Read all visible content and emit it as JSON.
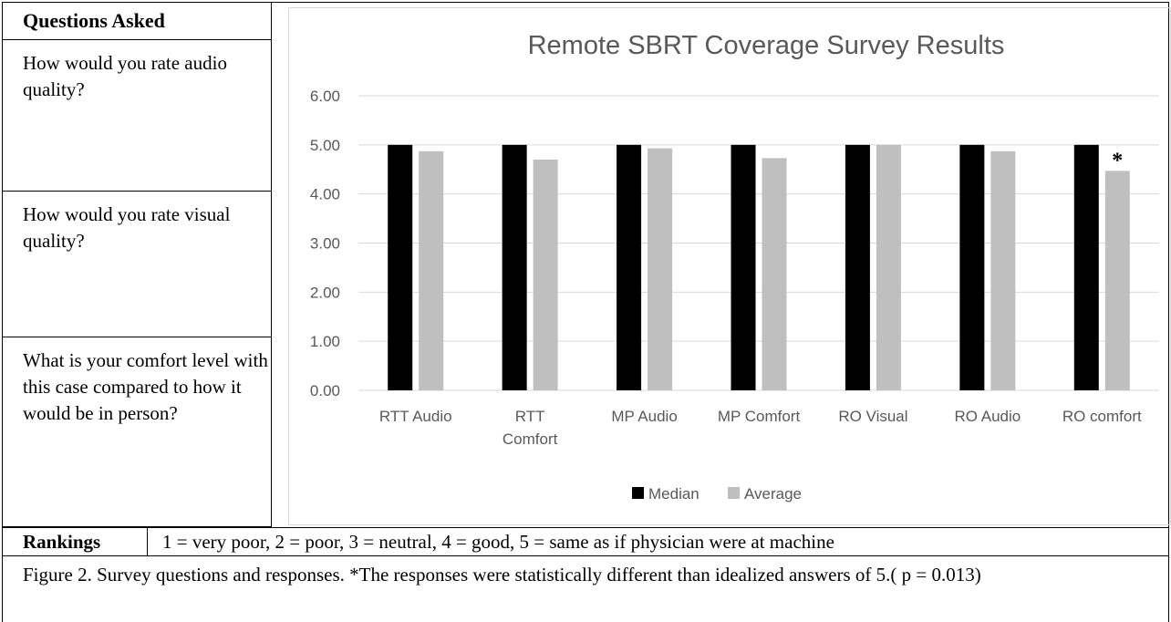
{
  "questions": {
    "header": "Questions Asked",
    "items": [
      "How would you rate audio quality?",
      "How would you rate visual quality?",
      "What is your comfort level with this case compared to how it would be in person?"
    ]
  },
  "rankings": {
    "label": "Rankings",
    "text": "1 = very poor, 2 = poor, 3 = neutral, 4 = good, 5 = same as if physician were at machine"
  },
  "caption": "Figure 2. Survey questions and responses. *The responses were statistically different than idealized answers of 5.( p = 0.013)",
  "chart_data": {
    "type": "bar",
    "title": "Remote SBRT Coverage Survey Results",
    "xlabel": "",
    "ylabel": "",
    "ylim": [
      0,
      6
    ],
    "yticks": [
      "0.00",
      "1.00",
      "2.00",
      "3.00",
      "4.00",
      "5.00",
      "6.00"
    ],
    "grid": true,
    "legend_position": "bottom",
    "categories": [
      [
        "RTT Audio"
      ],
      [
        "RTT",
        "Comfort"
      ],
      [
        "MP Audio"
      ],
      [
        "MP Comfort"
      ],
      [
        "RO Visual"
      ],
      [
        "RO Audio"
      ],
      [
        "RO comfort"
      ]
    ],
    "series": [
      {
        "name": "Median",
        "color": "#000000",
        "values": [
          5,
          5,
          5,
          5,
          5,
          5,
          5
        ]
      },
      {
        "name": "Average",
        "color": "#bfbfbf",
        "values": [
          4.87,
          4.7,
          4.93,
          4.73,
          5.0,
          4.87,
          4.47
        ]
      }
    ],
    "annotations": [
      {
        "category_index": 6,
        "series": "Average",
        "text": "*"
      }
    ]
  }
}
